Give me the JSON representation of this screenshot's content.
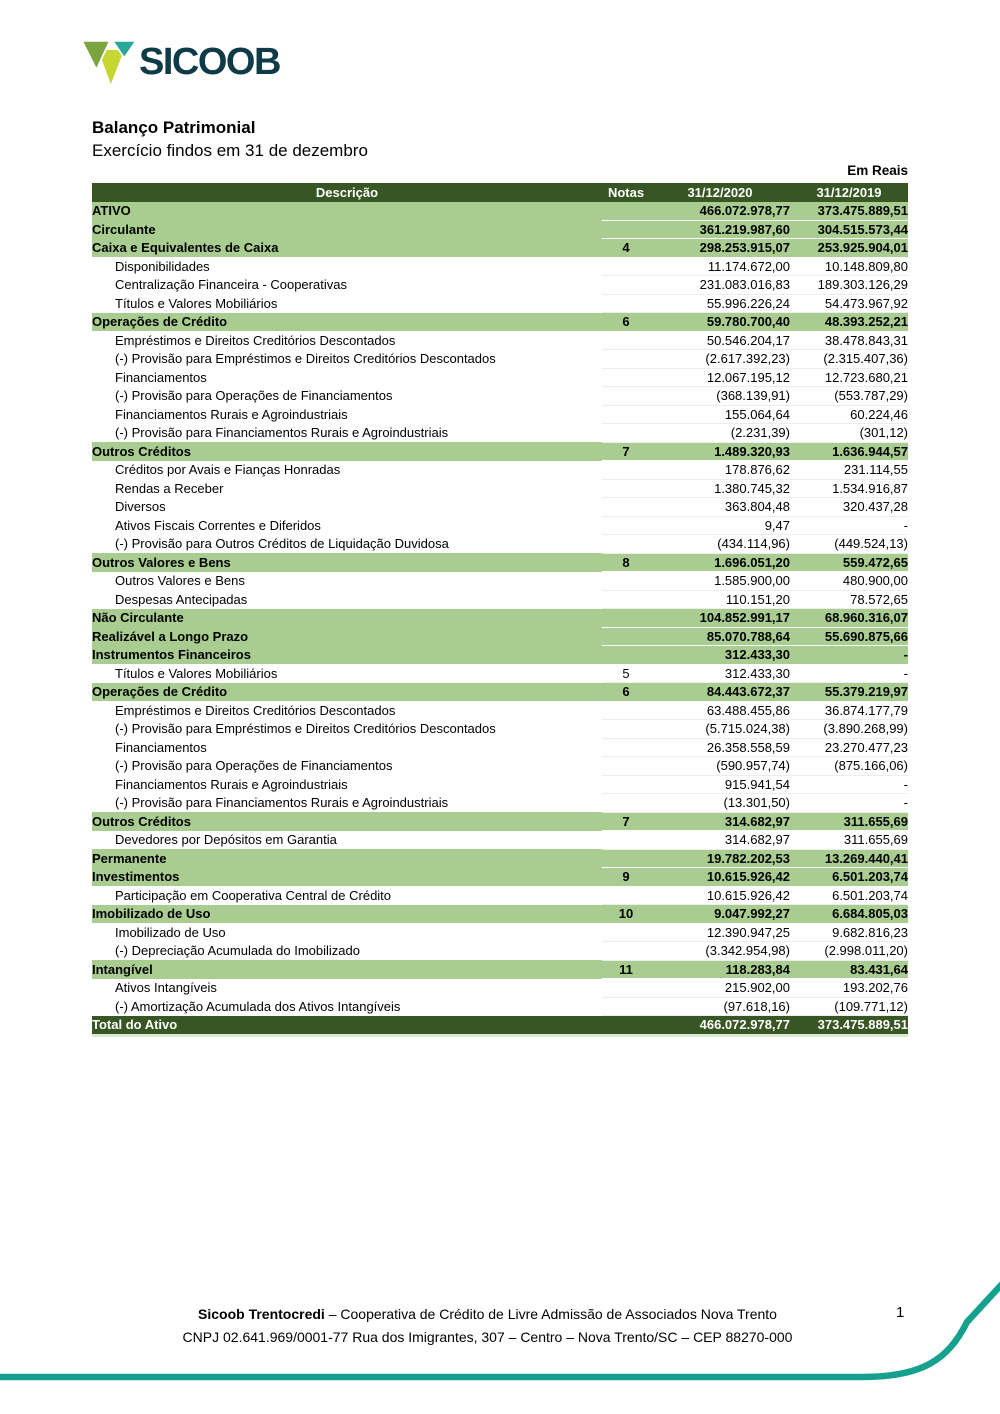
{
  "logo": {
    "wordmark": "SICOOB"
  },
  "doc": {
    "title": "Balanço Patrimonial",
    "subtitle": "Exercício findos em 31 de dezembro",
    "currency_note": "Em Reais"
  },
  "table": {
    "headers": {
      "desc": "Descrição",
      "nota": "Notas",
      "v2020": "31/12/2020",
      "v2019": "31/12/2019"
    },
    "rows": [
      {
        "style": "group",
        "desc": "ATIVO",
        "nota": "",
        "v2020": "466.072.978,77",
        "v2019": "373.475.889,51"
      },
      {
        "style": "group",
        "desc": "Circulante",
        "nota": "",
        "v2020": "361.219.987,60",
        "v2019": "304.515.573,44"
      },
      {
        "style": "group",
        "desc": "Caixa e Equivalentes de Caixa",
        "nota": "4",
        "v2020": "298.253.915,07",
        "v2019": "253.925.904,01"
      },
      {
        "style": "item",
        "desc": "Disponibilidades",
        "nota": "",
        "v2020": "11.174.672,00",
        "v2019": "10.148.809,80"
      },
      {
        "style": "item",
        "desc": "Centralização Financeira - Cooperativas",
        "nota": "",
        "v2020": "231.083.016,83",
        "v2019": "189.303.126,29"
      },
      {
        "style": "item",
        "desc": "Títulos e Valores Mobiliários",
        "nota": "",
        "v2020": "55.996.226,24",
        "v2019": "54.473.967,92"
      },
      {
        "style": "group",
        "desc": "Operações de Crédito",
        "nota": "6",
        "v2020": "59.780.700,40",
        "v2019": "48.393.252,21"
      },
      {
        "style": "item",
        "desc": "Empréstimos e Direitos Creditórios Descontados",
        "nota": "",
        "v2020": "50.546.204,17",
        "v2019": "38.478.843,31"
      },
      {
        "style": "item",
        "desc": "(-) Provisão para Empréstimos e Direitos Creditórios Descontados",
        "nota": "",
        "v2020": "(2.617.392,23)",
        "v2019": "(2.315.407,36)"
      },
      {
        "style": "item",
        "desc": "Financiamentos",
        "nota": "",
        "v2020": "12.067.195,12",
        "v2019": "12.723.680,21"
      },
      {
        "style": "item",
        "desc": "(-) Provisão para Operações de Financiamentos",
        "nota": "",
        "v2020": "(368.139,91)",
        "v2019": "(553.787,29)"
      },
      {
        "style": "item",
        "desc": "Financiamentos Rurais e Agroindustriais",
        "nota": "",
        "v2020": "155.064,64",
        "v2019": "60.224,46"
      },
      {
        "style": "item",
        "desc": "(-) Provisão para Financiamentos Rurais e Agroindustriais",
        "nota": "",
        "v2020": "(2.231,39)",
        "v2019": "(301,12)"
      },
      {
        "style": "group",
        "desc": "Outros Créditos",
        "nota": "7",
        "v2020": "1.489.320,93",
        "v2019": "1.636.944,57"
      },
      {
        "style": "item",
        "desc": "Créditos por Avais e Fianças Honradas",
        "nota": "",
        "v2020": "178.876,62",
        "v2019": "231.114,55"
      },
      {
        "style": "item",
        "desc": "Rendas a Receber",
        "nota": "",
        "v2020": "1.380.745,32",
        "v2019": "1.534.916,87"
      },
      {
        "style": "item",
        "desc": "Diversos",
        "nota": "",
        "v2020": "363.804,48",
        "v2019": "320.437,28"
      },
      {
        "style": "item",
        "desc": "Ativos Fiscais Correntes e Diferidos",
        "nota": "",
        "v2020": "9,47",
        "v2019": "-"
      },
      {
        "style": "item",
        "desc": "(-) Provisão para Outros Créditos de Liquidação Duvidosa",
        "nota": "",
        "v2020": "(434.114,96)",
        "v2019": "(449.524,13)"
      },
      {
        "style": "group",
        "desc": "Outros Valores e Bens",
        "nota": "8",
        "v2020": "1.696.051,20",
        "v2019": "559.472,65"
      },
      {
        "style": "item",
        "desc": "Outros Valores e Bens",
        "nota": "",
        "v2020": "1.585.900,00",
        "v2019": "480.900,00"
      },
      {
        "style": "item",
        "desc": "Despesas Antecipadas",
        "nota": "",
        "v2020": "110.151,20",
        "v2019": "78.572,65"
      },
      {
        "style": "group",
        "desc": "Não Circulante",
        "nota": "",
        "v2020": "104.852.991,17",
        "v2019": "68.960.316,07"
      },
      {
        "style": "group",
        "desc": "Realizável a Longo Prazo",
        "nota": "",
        "v2020": "85.070.788,64",
        "v2019": "55.690.875,66"
      },
      {
        "style": "group",
        "desc": "Instrumentos Financeiros",
        "nota": "",
        "v2020": "312.433,30",
        "v2019": "-"
      },
      {
        "style": "item",
        "desc": "Títulos e Valores Mobiliários",
        "nota": "5",
        "v2020": "312.433,30",
        "v2019": "-"
      },
      {
        "style": "group",
        "desc": "Operações de Crédito",
        "nota": "6",
        "v2020": "84.443.672,37",
        "v2019": "55.379.219,97"
      },
      {
        "style": "item",
        "desc": "Empréstimos e Direitos Creditórios Descontados",
        "nota": "",
        "v2020": "63.488.455,86",
        "v2019": "36.874.177,79"
      },
      {
        "style": "item",
        "desc": "(-) Provisão para Empréstimos e Direitos Creditórios Descontados",
        "nota": "",
        "v2020": "(5.715.024,38)",
        "v2019": "(3.890.268,99)"
      },
      {
        "style": "item",
        "desc": "Financiamentos",
        "nota": "",
        "v2020": "26.358.558,59",
        "v2019": "23.270.477,23"
      },
      {
        "style": "item",
        "desc": "(-) Provisão para Operações de Financiamentos",
        "nota": "",
        "v2020": "(590.957,74)",
        "v2019": "(875.166,06)"
      },
      {
        "style": "item",
        "desc": "Financiamentos Rurais e Agroindustriais",
        "nota": "",
        "v2020": "915.941,54",
        "v2019": "-"
      },
      {
        "style": "item",
        "desc": "(-) Provisão para Financiamentos Rurais e Agroindustriais",
        "nota": "",
        "v2020": "(13.301,50)",
        "v2019": "-"
      },
      {
        "style": "group",
        "desc": "Outros Créditos",
        "nota": "7",
        "v2020": "314.682,97",
        "v2019": "311.655,69"
      },
      {
        "style": "item",
        "desc": "Devedores por Depósitos em Garantia",
        "nota": "",
        "v2020": "314.682,97",
        "v2019": "311.655,69"
      },
      {
        "style": "group",
        "desc": "Permanente",
        "nota": "",
        "v2020": "19.782.202,53",
        "v2019": "13.269.440,41"
      },
      {
        "style": "group",
        "desc": "Investimentos",
        "nota": "9",
        "v2020": "10.615.926,42",
        "v2019": "6.501.203,74"
      },
      {
        "style": "item",
        "desc": "Participação em Cooperativa Central de Crédito",
        "nota": "",
        "v2020": "10.615.926,42",
        "v2019": "6.501.203,74"
      },
      {
        "style": "group",
        "desc": "Imobilizado de Uso",
        "nota": "10",
        "v2020": "9.047.992,27",
        "v2019": "6.684.805,03"
      },
      {
        "style": "item",
        "desc": "Imobilizado de Uso",
        "nota": "",
        "v2020": "12.390.947,25",
        "v2019": "9.682.816,23"
      },
      {
        "style": "item",
        "desc": "(-) Depreciação Acumulada do Imobilizado",
        "nota": "",
        "v2020": "(3.342.954,98)",
        "v2019": "(2.998.011,20)"
      },
      {
        "style": "group",
        "desc": "Intangível",
        "nota": "11",
        "v2020": "118.283,84",
        "v2019": "83.431,64"
      },
      {
        "style": "item",
        "desc": "Ativos Intangíveis",
        "nota": "",
        "v2020": "215.902,00",
        "v2019": "193.202,76"
      },
      {
        "style": "item",
        "desc": "(-) Amortização Acumulada dos Ativos Intangíveis",
        "nota": "",
        "v2020": "(97.618,16)",
        "v2019": "(109.771,12)"
      },
      {
        "style": "total",
        "desc": "Total do Ativo",
        "nota": "",
        "v2020": "466.072.978,77",
        "v2019": "373.475.889,51"
      }
    ]
  },
  "footer": {
    "org_name": "Sicoob Trentocredi",
    "org_description": " – Cooperativa de Crédito de Livre Admissão de Associados Nova Trento",
    "address": "CNPJ 02.641.969/0001-77 Rua dos Imigrantes, 307 – Centro – Nova Trento/SC – CEP 88270-000",
    "page_number": "1"
  },
  "colors": {
    "header_green": "#375623",
    "row_green": "#a9cd90",
    "curve_teal": "#16a18f",
    "wordmark_dark": "#0e3b47",
    "logo_green": "#79a440",
    "logo_teal": "#2aa79b",
    "logo_lime": "#c6d633"
  }
}
